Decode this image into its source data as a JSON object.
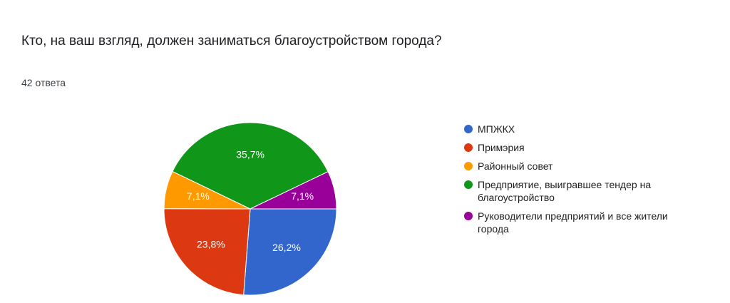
{
  "question": {
    "title": "Кто, на ваш взгляд, должен заниматься благоустройством города?",
    "responses": "42 ответа"
  },
  "chart_data": {
    "type": "pie",
    "slices": [
      {
        "label": "МПЖКХ",
        "value": 26.2,
        "display": "26,2%",
        "color": "#3366cc"
      },
      {
        "label": "Примэрия",
        "value": 23.8,
        "display": "23,8%",
        "color": "#dc3912"
      },
      {
        "label": "Районный совет",
        "value": 7.1,
        "display": "7,1%",
        "color": "#ff9900"
      },
      {
        "label": "Предприятие, выигравшее тендер на благоустройство",
        "value": 35.7,
        "display": "35,7%",
        "color": "#109618"
      },
      {
        "label": "Руководители предприятий и все жители города",
        "value": 7.1,
        "display": "7,1%",
        "color": "#990099"
      }
    ],
    "start": "3 o'clock",
    "direction": "clockwise",
    "legend_position": "right"
  }
}
